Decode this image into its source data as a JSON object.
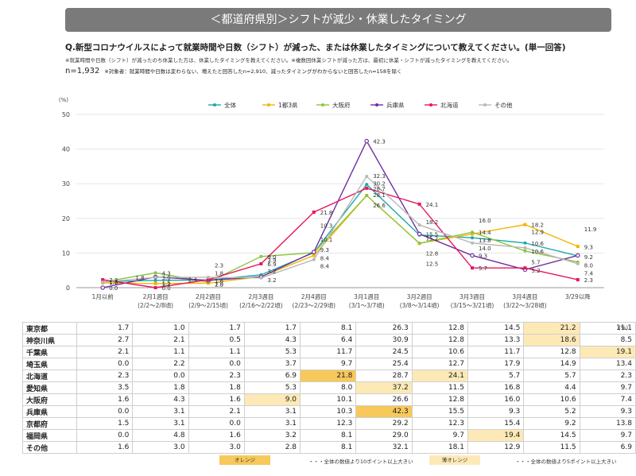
{
  "header": {
    "banner": "＜都道府県別＞シフトが減少・休業したタイミング",
    "question": "Q.新型コロナウイルスによって就業時間や日数（シフト）が減った、または休業したタイミングについて教えてください。(単一回答)",
    "note": "※就業時間や日数（シフト）が減ったのち休業した方は、休業したタイミングを教えてください。※複数回休業シフトが減った方は、最初に休業・シフトが減ったタイミングを教えてください。",
    "n": "n=1,932",
    "n_note": "※対象者：就業時間や日数は変わらない、増えたと回答したn=2,910、減ったタイミングがわからないと回答したn=158を除く"
  },
  "chart_data": {
    "type": "line",
    "unit_label": "(%)",
    "ylim": [
      0,
      50
    ],
    "yticks": [
      0,
      10,
      20,
      30,
      40,
      50
    ],
    "categories": [
      {
        "main": "1月以前",
        "sub": ""
      },
      {
        "main": "2月1週目",
        "sub": "(2/2〜2/8頃)"
      },
      {
        "main": "2月2週目",
        "sub": "(2/9〜2/15頃)"
      },
      {
        "main": "2月3週目",
        "sub": "(2/16〜2/22頃)"
      },
      {
        "main": "2月4週目",
        "sub": "(2/23〜2/29頃)"
      },
      {
        "main": "3月1週目",
        "sub": "(3/1〜3/7頃)"
      },
      {
        "main": "3月2週目",
        "sub": "(3/8〜3/14頃)"
      },
      {
        "main": "3月3週目",
        "sub": "(3/15〜3/21頃)"
      },
      {
        "main": "3月4週目",
        "sub": "(3/22〜3/28頃)"
      },
      {
        "main": "3/29以降",
        "sub": ""
      }
    ],
    "legend_position": "top",
    "series": [
      {
        "name": "全体",
        "color": "#1fa8a8",
        "values": [
          1.7,
          2.1,
          2.2,
          3.7,
          10.1,
          29.8,
          15.2,
          14.4,
          12.9,
          9.2
        ]
      },
      {
        "name": "1都3県",
        "color": "#f2b500",
        "values": [
          1.4,
          1.2,
          1.3,
          3.2,
          9.3,
          26.6,
          12.8,
          15.5,
          18.2,
          11.9
        ]
      },
      {
        "name": "大阪府",
        "color": "#8cc63e",
        "values": [
          1.6,
          4.3,
          1.6,
          9.0,
          10.1,
          26.6,
          12.8,
          16.0,
          10.6,
          7.4
        ]
      },
      {
        "name": "兵庫県",
        "color": "#7030a0",
        "values": [
          0.0,
          3.1,
          2.1,
          3.1,
          10.3,
          42.3,
          15.5,
          9.3,
          5.2,
          9.3
        ]
      },
      {
        "name": "北海道",
        "color": "#e6175c",
        "values": [
          2.3,
          0.0,
          2.3,
          6.9,
          21.8,
          28.7,
          24.1,
          5.7,
          5.7,
          2.3
        ]
      },
      {
        "name": "その他",
        "color": "#b8b8b8",
        "values": [
          1.6,
          3.0,
          3.0,
          2.8,
          8.1,
          32.1,
          18.1,
          12.9,
          11.5,
          6.9
        ]
      }
    ],
    "labels": [
      {
        "t": "2.3",
        "i": 0,
        "v": 2.3
      },
      {
        "t": "1.7",
        "i": 0,
        "v": 1.7
      },
      {
        "t": "1.6",
        "i": 0,
        "v": 1.6
      },
      {
        "t": "0.0",
        "i": 0,
        "v": 0.0
      },
      {
        "t": "1.8",
        "i": 0.5,
        "v": 3.0
      },
      {
        "t": "3.0",
        "i": 1,
        "v": 3.0
      },
      {
        "t": "4.3",
        "i": 1,
        "v": 4.3
      },
      {
        "t": "1.2",
        "i": 1,
        "v": 1.2
      },
      {
        "t": "1.5",
        "i": 1,
        "v": 1.5
      },
      {
        "t": "0.0",
        "i": 1,
        "v": 0.0
      },
      {
        "t": "2.4",
        "i": 1.5,
        "v": 2.4
      },
      {
        "t": "2.3",
        "i": 2,
        "v": 6.5
      },
      {
        "t": "1.8",
        "i": 2,
        "v": 4.2
      },
      {
        "t": "1.6",
        "i": 2,
        "v": 2.1
      },
      {
        "t": "1.0",
        "i": 2,
        "v": 1.0
      },
      {
        "t": "2.5",
        "i": 2,
        "v": 1.0
      },
      {
        "t": "9.0",
        "i": 3,
        "v": 9.0
      },
      {
        "t": "6.9",
        "i": 3,
        "v": 6.9
      },
      {
        "t": "3.9",
        "i": 3,
        "v": 8.0
      },
      {
        "t": "3.2",
        "i": 3,
        "v": 2.3
      },
      {
        "t": "3.2",
        "i": 3,
        "v": 4.8
      },
      {
        "t": "21.8",
        "i": 4,
        "v": 21.8
      },
      {
        "t": "10.3",
        "i": 4,
        "v": 18.0
      },
      {
        "t": "10.1",
        "i": 4,
        "v": 14.0
      },
      {
        "t": "9.3",
        "i": 4,
        "v": 11.0
      },
      {
        "t": "8.4",
        "i": 4,
        "v": 8.6
      },
      {
        "t": "8.4",
        "i": 4,
        "v": 6.3
      },
      {
        "t": "42.3",
        "i": 5,
        "v": 42.3
      },
      {
        "t": "32.3",
        "i": 5,
        "v": 32.3
      },
      {
        "t": "30.2",
        "i": 5,
        "v": 30.2
      },
      {
        "t": "28.7",
        "i": 5,
        "v": 28.7
      },
      {
        "t": "28.1",
        "i": 5,
        "v": 26.8
      },
      {
        "t": "26.6",
        "i": 5,
        "v": 23.8
      },
      {
        "t": "24.1",
        "i": 6,
        "v": 24.1
      },
      {
        "t": "18.2",
        "i": 6,
        "v": 19.0
      },
      {
        "t": "15.5",
        "i": 6,
        "v": 15.5
      },
      {
        "t": "15.2",
        "i": 6,
        "v": 14.3
      },
      {
        "t": "12.8",
        "i": 6,
        "v": 10.0
      },
      {
        "t": "12.5",
        "i": 6,
        "v": 7.0
      },
      {
        "t": "16.0",
        "i": 7,
        "v": 19.5
      },
      {
        "t": "14.4",
        "i": 7,
        "v": 16.0
      },
      {
        "t": "14.0",
        "i": 7,
        "v": 11.5
      },
      {
        "t": "13.8",
        "i": 7,
        "v": 13.8
      },
      {
        "t": "9.3",
        "i": 7,
        "v": 9.3
      },
      {
        "t": "5.7",
        "i": 7,
        "v": 5.7
      },
      {
        "t": "18.2",
        "i": 8,
        "v": 18.2
      },
      {
        "t": "12.9",
        "i": 8,
        "v": 16.2
      },
      {
        "t": "10.6",
        "i": 8,
        "v": 12.8
      },
      {
        "t": "10.6",
        "i": 8,
        "v": 10.6
      },
      {
        "t": "5.7",
        "i": 8,
        "v": 7.4
      },
      {
        "t": "5.2",
        "i": 8,
        "v": 5.0
      },
      {
        "t": "11.9",
        "i": 9,
        "v": 17.0
      },
      {
        "t": "9.3",
        "i": 9,
        "v": 11.8
      },
      {
        "t": "9.2",
        "i": 9,
        "v": 8.9
      },
      {
        "t": "8.0",
        "i": 9,
        "v": 6.5
      },
      {
        "t": "7.4",
        "i": 9,
        "v": 4.3
      },
      {
        "t": "2.3",
        "i": 9,
        "v": 2.3
      }
    ]
  },
  "table": {
    "unit": "(%)",
    "rows": [
      {
        "name": "東京都",
        "values": [
          "1.7",
          "1.0",
          "1.7",
          "1.7",
          "8.1",
          "26.3",
          "12.8",
          "14.5",
          "21.2",
          "11.1"
        ],
        "hl": {
          "8": "l"
        }
      },
      {
        "name": "神奈川県",
        "values": [
          "2.7",
          "2.1",
          "0.5",
          "4.3",
          "6.4",
          "30.9",
          "12.8",
          "13.3",
          "18.6",
          "8.5"
        ],
        "hl": {
          "8": "l"
        }
      },
      {
        "name": "千葉県",
        "values": [
          "2.1",
          "1.1",
          "1.1",
          "5.3",
          "11.7",
          "24.5",
          "10.6",
          "11.7",
          "12.8",
          "19.1"
        ],
        "hl": {
          "9": "l"
        }
      },
      {
        "name": "埼玉県",
        "values": [
          "0.0",
          "2.2",
          "0.0",
          "3.7",
          "9.7",
          "25.4",
          "12.7",
          "17.9",
          "14.9",
          "13.4"
        ],
        "hl": {}
      },
      {
        "name": "北海道",
        "values": [
          "2.3",
          "0.0",
          "2.3",
          "6.9",
          "21.8",
          "28.7",
          "24.1",
          "5.7",
          "5.7",
          "2.3"
        ],
        "hl": {
          "4": "o",
          "6": "l"
        }
      },
      {
        "name": "愛知県",
        "values": [
          "3.5",
          "1.8",
          "1.8",
          "5.3",
          "8.0",
          "37.2",
          "11.5",
          "16.8",
          "4.4",
          "9.7"
        ],
        "hl": {
          "5": "l"
        }
      },
      {
        "name": "大阪府",
        "values": [
          "1.6",
          "4.3",
          "1.6",
          "9.0",
          "10.1",
          "26.6",
          "12.8",
          "16.0",
          "10.6",
          "7.4"
        ],
        "hl": {
          "3": "l"
        }
      },
      {
        "name": "兵庫県",
        "values": [
          "0.0",
          "3.1",
          "2.1",
          "3.1",
          "10.3",
          "42.3",
          "15.5",
          "9.3",
          "5.2",
          "9.3"
        ],
        "hl": {
          "5": "o"
        }
      },
      {
        "name": "京都府",
        "values": [
          "1.5",
          "3.1",
          "0.0",
          "3.1",
          "12.3",
          "29.2",
          "12.3",
          "15.4",
          "9.2",
          "13.8"
        ],
        "hl": {}
      },
      {
        "name": "福岡県",
        "values": [
          "0.0",
          "4.8",
          "1.6",
          "3.2",
          "8.1",
          "29.0",
          "9.7",
          "19.4",
          "14.5",
          "9.7"
        ],
        "hl": {
          "7": "l"
        }
      },
      {
        "name": "その他",
        "values": [
          "1.6",
          "3.0",
          "3.0",
          "2.8",
          "8.1",
          "32.1",
          "18.1",
          "12.9",
          "11.5",
          "6.9"
        ],
        "hl": {}
      }
    ]
  },
  "footer": {
    "orange_label": "オレンジ",
    "orange_desc": "・・・全体の数値より10ポイント以上大きい",
    "light_label": "薄オレンジ",
    "light_desc": "・・・全体の数値より5ポイント以上大きい",
    "colors": {
      "orange": "#f7c85a",
      "light": "#fde9b6"
    }
  }
}
